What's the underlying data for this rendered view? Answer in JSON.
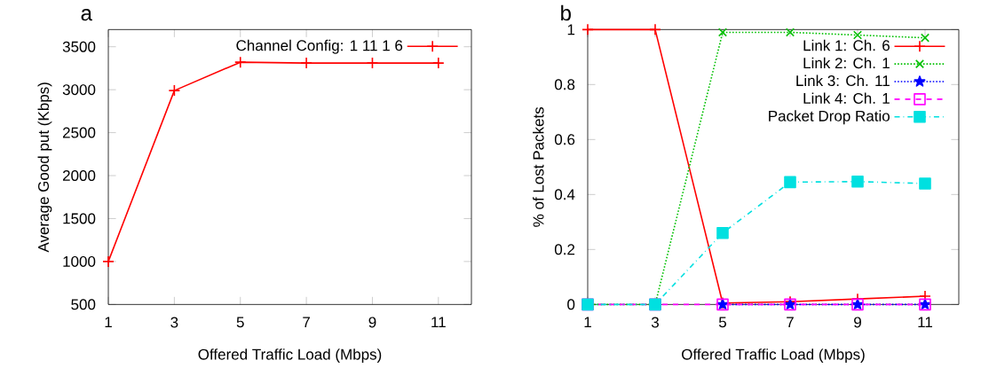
{
  "chart_data": [
    {
      "type": "line",
      "title": "a",
      "xlabel": "Offered Traffic Load (Mbps)",
      "ylabel": "Average Good put (Kbps)",
      "x": [
        1,
        3,
        5,
        7,
        9,
        11
      ],
      "xlim": [
        1,
        12
      ],
      "ylim": [
        500,
        3700
      ],
      "xticks": [
        1,
        3,
        5,
        7,
        9,
        11
      ],
      "yticks": [
        500,
        1000,
        1500,
        2000,
        2500,
        3000,
        3500
      ],
      "legend": "top right",
      "series": [
        {
          "name": "Channel Config: 1 11 1 6",
          "color": "#ff0000",
          "marker": "plus",
          "line_style": "solid",
          "values": [
            1000,
            2990,
            3320,
            3310,
            3310,
            3310
          ]
        }
      ]
    },
    {
      "type": "line",
      "title": "b",
      "xlabel": "Offered Traffic Load (Mbps)",
      "ylabel": "% of Lost Packets",
      "x": [
        1,
        3,
        5,
        7,
        9,
        11
      ],
      "xlim": [
        1,
        12
      ],
      "ylim": [
        0,
        1
      ],
      "xticks": [
        1,
        3,
        5,
        7,
        9,
        11
      ],
      "yticks": [
        0,
        0.2,
        0.4,
        0.6,
        0.8,
        1
      ],
      "legend": "top right",
      "series": [
        {
          "name": "Link 1: Ch. 6",
          "color": "#ff0000",
          "marker": "plus",
          "line_style": "solid",
          "values": [
            1,
            1,
            0.005,
            0.01,
            0.02,
            0.03
          ]
        },
        {
          "name": "Link 2: Ch. 1",
          "color": "#00c000",
          "marker": "cross",
          "line_style": "dotted",
          "values": [
            0,
            0,
            0.99,
            0.99,
            0.98,
            0.97
          ]
        },
        {
          "name": "Link 3: Ch. 11",
          "color": "#0000ff",
          "marker": "star",
          "line_style": "dotted",
          "values": [
            null,
            null,
            0,
            0,
            0,
            0
          ]
        },
        {
          "name": "Link 4: Ch. 1",
          "color": "#ff00ff",
          "marker": "square_open",
          "line_style": "dashed",
          "values": [
            0,
            0,
            0,
            0,
            0,
            0
          ]
        },
        {
          "name": "Packet Drop Ratio",
          "color": "#00e0e0",
          "marker": "square",
          "line_style": "dashdot",
          "values": [
            0,
            0,
            0.26,
            0.445,
            0.447,
            0.44
          ]
        }
      ]
    }
  ]
}
